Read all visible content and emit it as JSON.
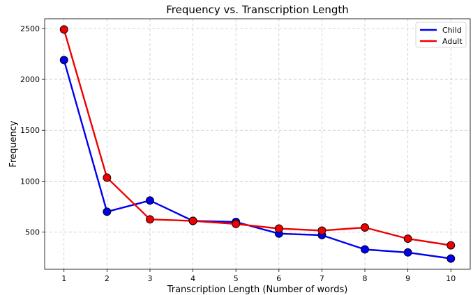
{
  "chart_data": {
    "type": "line",
    "title": "Frequency vs. Transcription Length",
    "xlabel": "Transcription Length (Number of words)",
    "ylabel": "Frequency",
    "x": [
      1,
      2,
      3,
      4,
      5,
      6,
      7,
      8,
      9,
      10
    ],
    "xlim": [
      0.55,
      10.45
    ],
    "ylim": [
      135,
      2595
    ],
    "yticks": [
      500,
      1000,
      1500,
      2000,
      2500
    ],
    "grid": true,
    "legend_position": "top-right",
    "series": [
      {
        "name": "Child",
        "color": "#0000ee",
        "values": [
          2190,
          700,
          810,
          610,
          600,
          485,
          470,
          330,
          300,
          240
        ]
      },
      {
        "name": "Adult",
        "color": "#ee0000",
        "values": [
          2490,
          1035,
          625,
          610,
          580,
          535,
          515,
          545,
          435,
          370
        ]
      }
    ]
  }
}
